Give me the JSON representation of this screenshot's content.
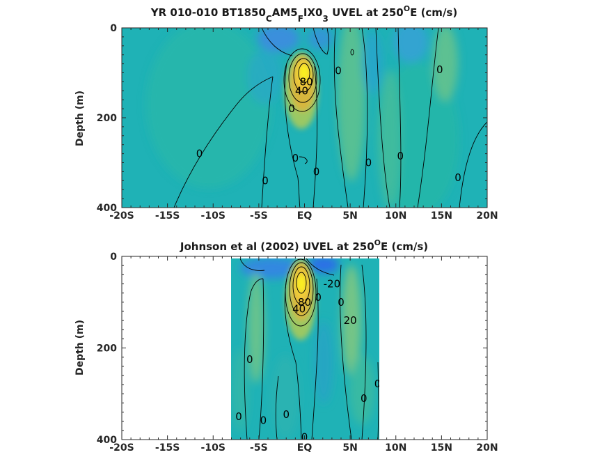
{
  "chart_data": [
    {
      "type": "heatmap",
      "title": {
        "prefix": "YR 010-010 BT1850",
        "sub1": "C",
        "mid1": "AM5",
        "sub2": "F",
        "mid2": "IX0",
        "sub3": "3",
        "mid3": " UVEL at 250",
        "sup": "O",
        "suffix": "E (cm/s)"
      },
      "xlabel": "",
      "ylabel": "Depth (m)",
      "xlim": [
        -20,
        20
      ],
      "ylim": [
        0,
        400
      ],
      "y_reversed": true,
      "x_ticks": [
        -20,
        -15,
        -10,
        -5,
        0,
        5,
        10,
        15,
        20
      ],
      "x_tick_labels": [
        "-20S",
        "-15S",
        "-10S",
        "-5S",
        "EQ",
        "5N",
        "10N",
        "15N",
        "20N"
      ],
      "y_ticks": [
        0,
        200,
        400
      ],
      "y_tick_labels": [
        "0",
        "200",
        "400"
      ],
      "data_extent": [
        -20,
        20
      ],
      "data_depth": [
        0,
        395
      ],
      "core": {
        "lat": 0,
        "depth": 100,
        "peak": 100
      },
      "contour_labels": [
        {
          "text": "0",
          "lat": -11.5,
          "depth": 280
        },
        {
          "text": "0",
          "lat": -4.3,
          "depth": 340
        },
        {
          "text": "0",
          "lat": -1.0,
          "depth": 290
        },
        {
          "text": "0",
          "lat": 1.3,
          "depth": 320
        },
        {
          "text": "0",
          "lat": 3.7,
          "depth": 95
        },
        {
          "text": "0",
          "lat": 7.0,
          "depth": 300
        },
        {
          "text": "0",
          "lat": 10.5,
          "depth": 285
        },
        {
          "text": "0",
          "lat": 14.8,
          "depth": 93
        },
        {
          "text": "0",
          "lat": 16.8,
          "depth": 333
        },
        {
          "text": "0",
          "lat": -1.4,
          "depth": 180
        },
        {
          "text": "40",
          "lat": -0.3,
          "depth": 140
        },
        {
          "text": "80",
          "lat": 0.2,
          "depth": 120
        }
      ]
    },
    {
      "type": "heatmap",
      "title": {
        "prefix": "Johnson et al (2002) UVEL at 250",
        "sup": "O",
        "suffix": "E (cm/s)"
      },
      "xlabel": "",
      "ylabel": "Depth (m)",
      "xlim": [
        -20,
        20
      ],
      "ylim": [
        0,
        400
      ],
      "y_reversed": true,
      "x_ticks": [
        -20,
        -15,
        -10,
        -5,
        0,
        5,
        10,
        15,
        20
      ],
      "x_tick_labels": [
        "-20S",
        "-15S",
        "-10S",
        "-5S",
        "EQ",
        "5N",
        "10N",
        "15N",
        "20N"
      ],
      "y_ticks": [
        0,
        200,
        400
      ],
      "y_tick_labels": [
        "0",
        "200",
        "400"
      ],
      "data_extent": [
        -8,
        8.2
      ],
      "data_depth": [
        0,
        400
      ],
      "core": {
        "lat": 0,
        "depth": 80,
        "peak": 100
      },
      "contour_labels": [
        {
          "text": "0",
          "lat": -6.0,
          "depth": 225
        },
        {
          "text": "0",
          "lat": -7.2,
          "depth": 350
        },
        {
          "text": "0",
          "lat": -4.5,
          "depth": 358
        },
        {
          "text": "0",
          "lat": -2.0,
          "depth": 345
        },
        {
          "text": "0",
          "lat": 1.5,
          "depth": 90
        },
        {
          "text": "0",
          "lat": 4.0,
          "depth": 100
        },
        {
          "text": "0",
          "lat": 6.5,
          "depth": 310
        },
        {
          "text": "0",
          "lat": 8.0,
          "depth": 278
        },
        {
          "text": "0",
          "lat": 0.0,
          "depth": 395
        },
        {
          "text": "-20",
          "lat": 3.0,
          "depth": 60
        },
        {
          "text": "20",
          "lat": 5.0,
          "depth": 140
        },
        {
          "text": "80",
          "lat": 0.0,
          "depth": 100
        },
        {
          "text": "40",
          "lat": -0.6,
          "depth": 115
        }
      ]
    }
  ]
}
